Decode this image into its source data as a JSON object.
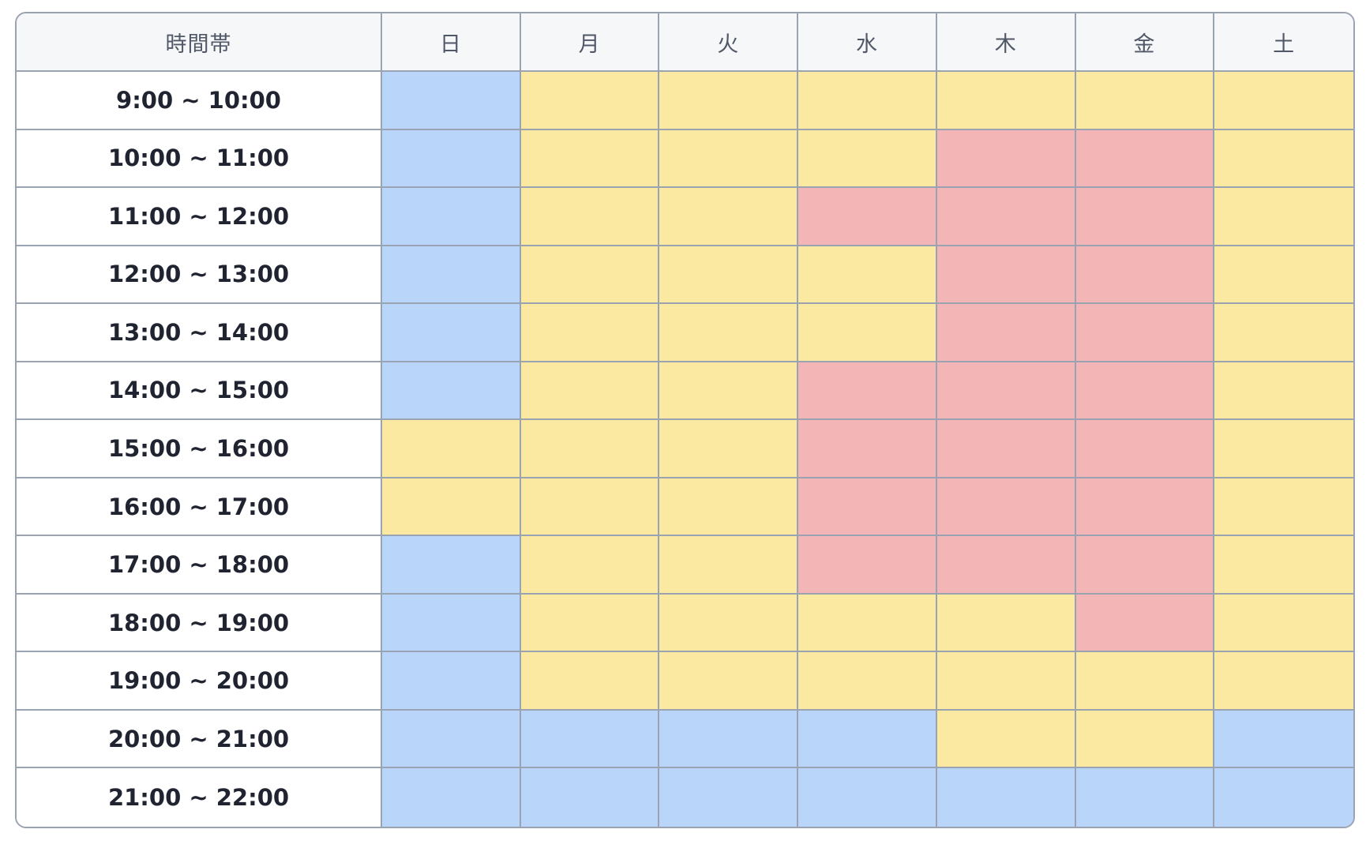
{
  "table": {
    "time_header": "時間帯",
    "days": [
      "日",
      "月",
      "火",
      "水",
      "木",
      "金",
      "土"
    ],
    "rows": [
      {
        "time": "9:00 ~ 10:00",
        "slots": [
          "blue",
          "yellow",
          "yellow",
          "yellow",
          "yellow",
          "yellow",
          "yellow"
        ]
      },
      {
        "time": "10:00 ~ 11:00",
        "slots": [
          "blue",
          "yellow",
          "yellow",
          "yellow",
          "red",
          "red",
          "yellow"
        ]
      },
      {
        "time": "11:00 ~ 12:00",
        "slots": [
          "blue",
          "yellow",
          "yellow",
          "red",
          "red",
          "red",
          "yellow"
        ]
      },
      {
        "time": "12:00 ~ 13:00",
        "slots": [
          "blue",
          "yellow",
          "yellow",
          "yellow",
          "red",
          "red",
          "yellow"
        ]
      },
      {
        "time": "13:00 ~ 14:00",
        "slots": [
          "blue",
          "yellow",
          "yellow",
          "yellow",
          "red",
          "red",
          "yellow"
        ]
      },
      {
        "time": "14:00 ~ 15:00",
        "slots": [
          "blue",
          "yellow",
          "yellow",
          "red",
          "red",
          "red",
          "yellow"
        ]
      },
      {
        "time": "15:00 ~ 16:00",
        "slots": [
          "yellow",
          "yellow",
          "yellow",
          "red",
          "red",
          "red",
          "yellow"
        ]
      },
      {
        "time": "16:00 ~ 17:00",
        "slots": [
          "yellow",
          "yellow",
          "yellow",
          "red",
          "red",
          "red",
          "yellow"
        ]
      },
      {
        "time": "17:00 ~ 18:00",
        "slots": [
          "blue",
          "yellow",
          "yellow",
          "red",
          "red",
          "red",
          "yellow"
        ]
      },
      {
        "time": "18:00 ~ 19:00",
        "slots": [
          "blue",
          "yellow",
          "yellow",
          "yellow",
          "yellow",
          "red",
          "yellow"
        ]
      },
      {
        "time": "19:00 ~ 20:00",
        "slots": [
          "blue",
          "yellow",
          "yellow",
          "yellow",
          "yellow",
          "yellow",
          "yellow"
        ]
      },
      {
        "time": "20:00 ~ 21:00",
        "slots": [
          "blue",
          "blue",
          "blue",
          "blue",
          "yellow",
          "yellow",
          "blue"
        ]
      },
      {
        "time": "21:00 ~ 22:00",
        "slots": [
          "blue",
          "blue",
          "blue",
          "blue",
          "blue",
          "blue",
          "blue"
        ]
      }
    ]
  },
  "colors": {
    "blue": "#b9d6fa",
    "yellow": "#fbe9a2",
    "red": "#f3b5b5",
    "grid_border": "#9aa3b2",
    "header_bg": "#f6f7f9"
  }
}
